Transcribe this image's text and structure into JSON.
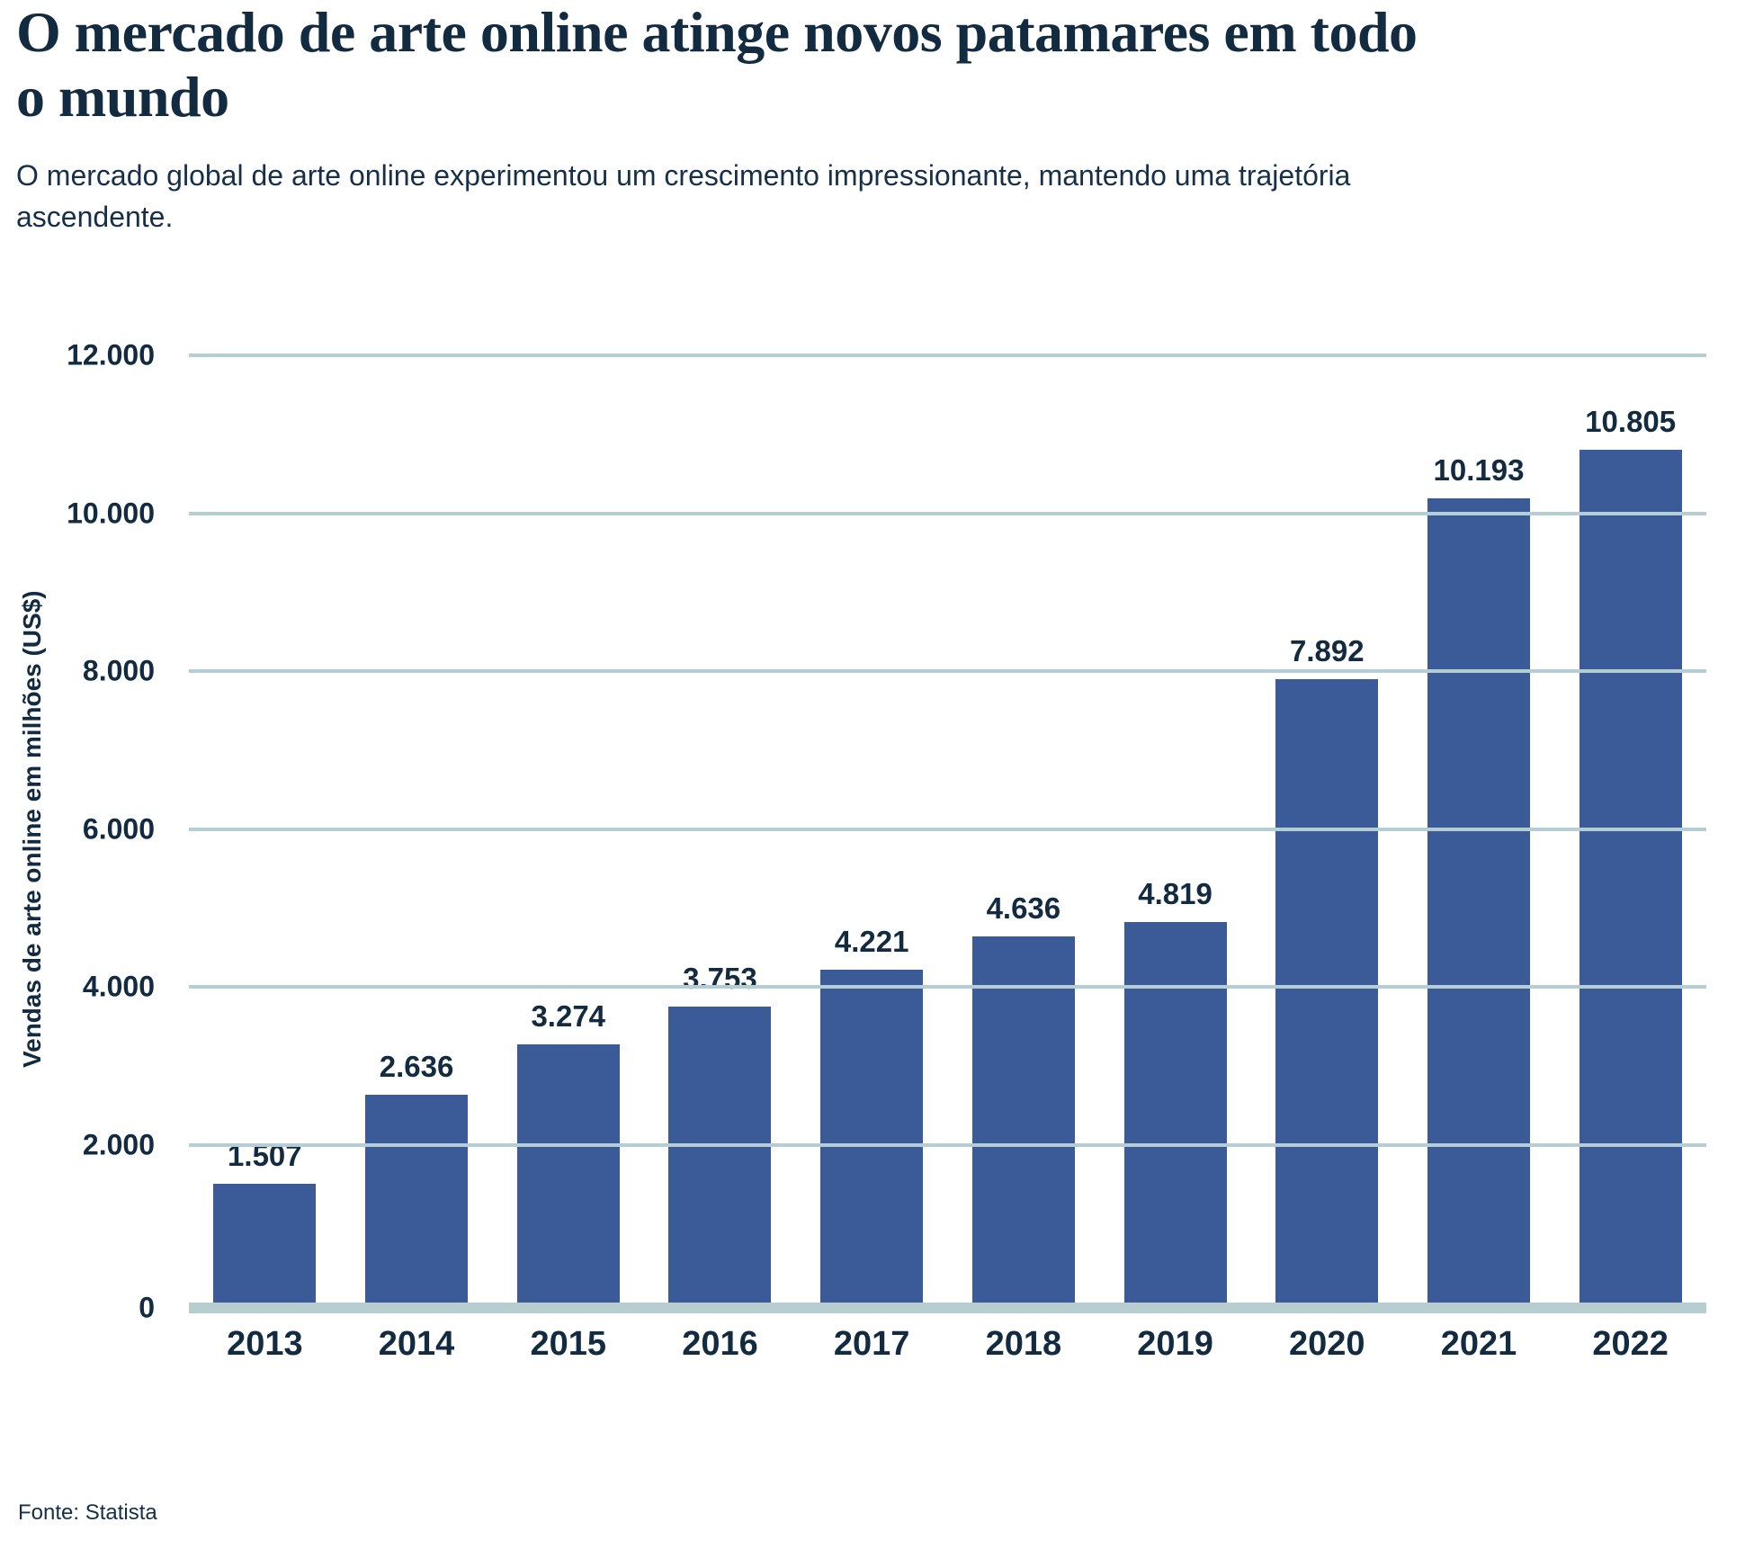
{
  "header": {
    "title": "O mercado de arte online atinge novos patamares em todo o mundo",
    "subtitle": "O mercado global de arte online experimentou um crescimento impressionante, mantendo uma trajetória ascendente."
  },
  "chart_data": {
    "type": "bar",
    "title": "O mercado de arte online atinge novos patamares em todo o mundo",
    "categories": [
      "2013",
      "2014",
      "2015",
      "2016",
      "2017",
      "2018",
      "2019",
      "2020",
      "2021",
      "2022"
    ],
    "values": [
      1507,
      2636,
      3274,
      3753,
      4221,
      4636,
      4819,
      7892,
      10193,
      10805
    ],
    "value_labels": [
      "1.507",
      "2.636",
      "3.274",
      "3.753",
      "4.221",
      "4.636",
      "4.819",
      "7.892",
      "10.193",
      "10.805"
    ],
    "xlabel": "",
    "ylabel": "Vendas de arte online em milhões (US$)",
    "ylim": [
      0,
      12000
    ],
    "ytick_values": [
      0,
      2000,
      4000,
      6000,
      8000,
      10000,
      12000
    ],
    "ytick_labels": [
      "0",
      "2.000",
      "4.000",
      "6.000",
      "8.000",
      "10.000",
      "12.000"
    ],
    "grid": "horizontal gridlines on",
    "legend": "none"
  },
  "footer": {
    "source": "Fonte: Statista"
  },
  "colors": {
    "bar": "#3A5B98",
    "ink": "#132B40",
    "gridline": "#B5CDD5",
    "baseline": "#B7CDCF",
    "background": "#FFFFFF"
  }
}
